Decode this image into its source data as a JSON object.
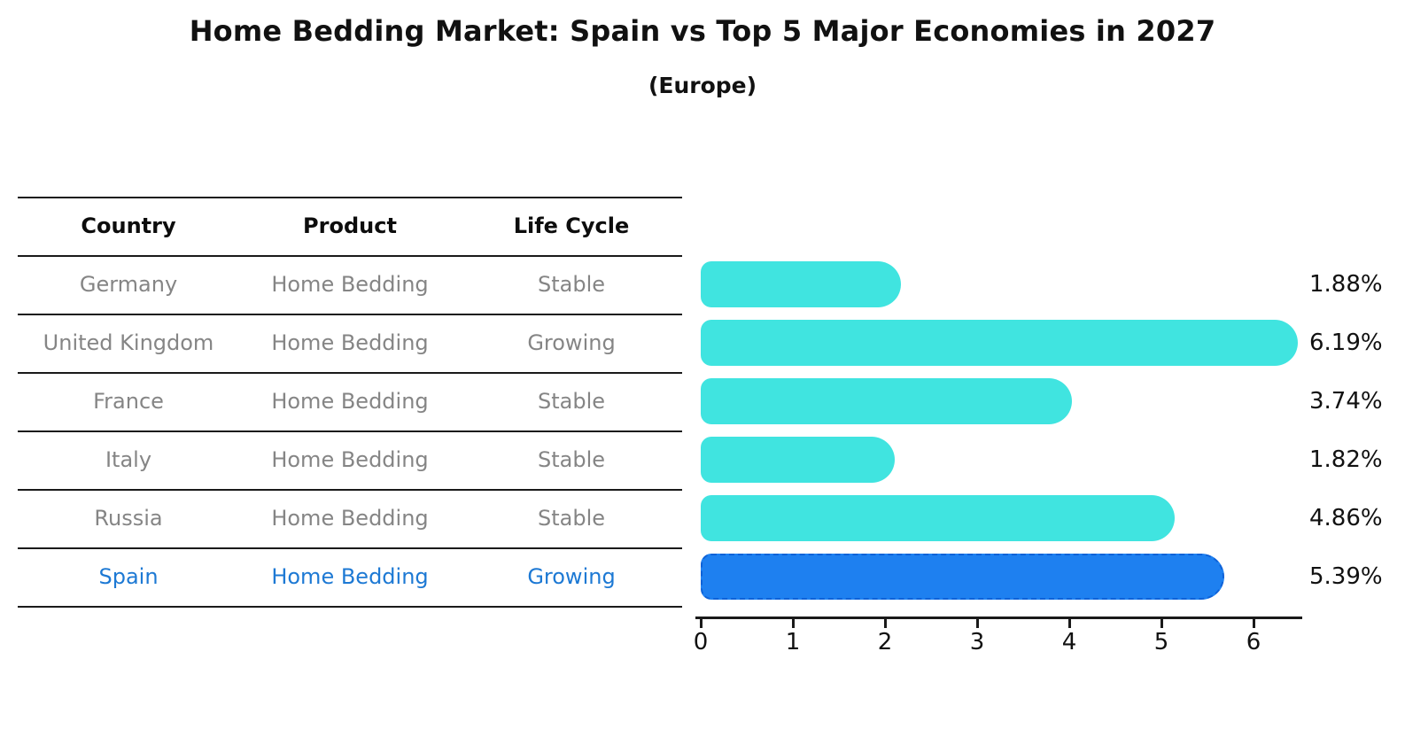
{
  "chart_data": {
    "type": "bar",
    "orientation": "horizontal",
    "title": "Home Bedding Market: Spain vs Top 5 Major Economies in 2027",
    "subtitle": "(Europe)",
    "categories": [
      "Germany",
      "United Kingdom",
      "France",
      "Italy",
      "Russia",
      "Spain"
    ],
    "values": [
      1.88,
      6.19,
      3.74,
      1.82,
      4.86,
      5.39
    ],
    "value_labels": [
      "1.88%",
      "6.19%",
      "3.74%",
      "1.82%",
      "4.86%",
      "5.39%"
    ],
    "highlight_category": "Spain",
    "highlight_index": 5,
    "x_ticks": [
      "0",
      "1",
      "2",
      "3",
      "4",
      "5",
      "6"
    ],
    "xlim": [
      0,
      6.5
    ],
    "grid": false,
    "legend": false,
    "xlabel": "",
    "ylabel": "",
    "colors": {
      "bar": "#40E4E0",
      "bar_highlight": "#1E80F0",
      "bar_highlight_edge": "#0E62D8",
      "highlight_text": "#1D79D4",
      "row_text": "#858585",
      "text": "#111111"
    }
  },
  "table": {
    "headers": [
      "Country",
      "Product",
      "Life Cycle"
    ],
    "rows": [
      {
        "country": "Germany",
        "product": "Home Bedding",
        "life_cycle": "Stable"
      },
      {
        "country": "United Kingdom",
        "product": "Home Bedding",
        "life_cycle": "Growing"
      },
      {
        "country": "France",
        "product": "Home Bedding",
        "life_cycle": "Stable"
      },
      {
        "country": "Italy",
        "product": "Home Bedding",
        "life_cycle": "Stable"
      },
      {
        "country": "Russia",
        "product": "Home Bedding",
        "life_cycle": "Stable"
      },
      {
        "country": "Spain",
        "product": "Home Bedding",
        "life_cycle": "Growing"
      }
    ]
  }
}
